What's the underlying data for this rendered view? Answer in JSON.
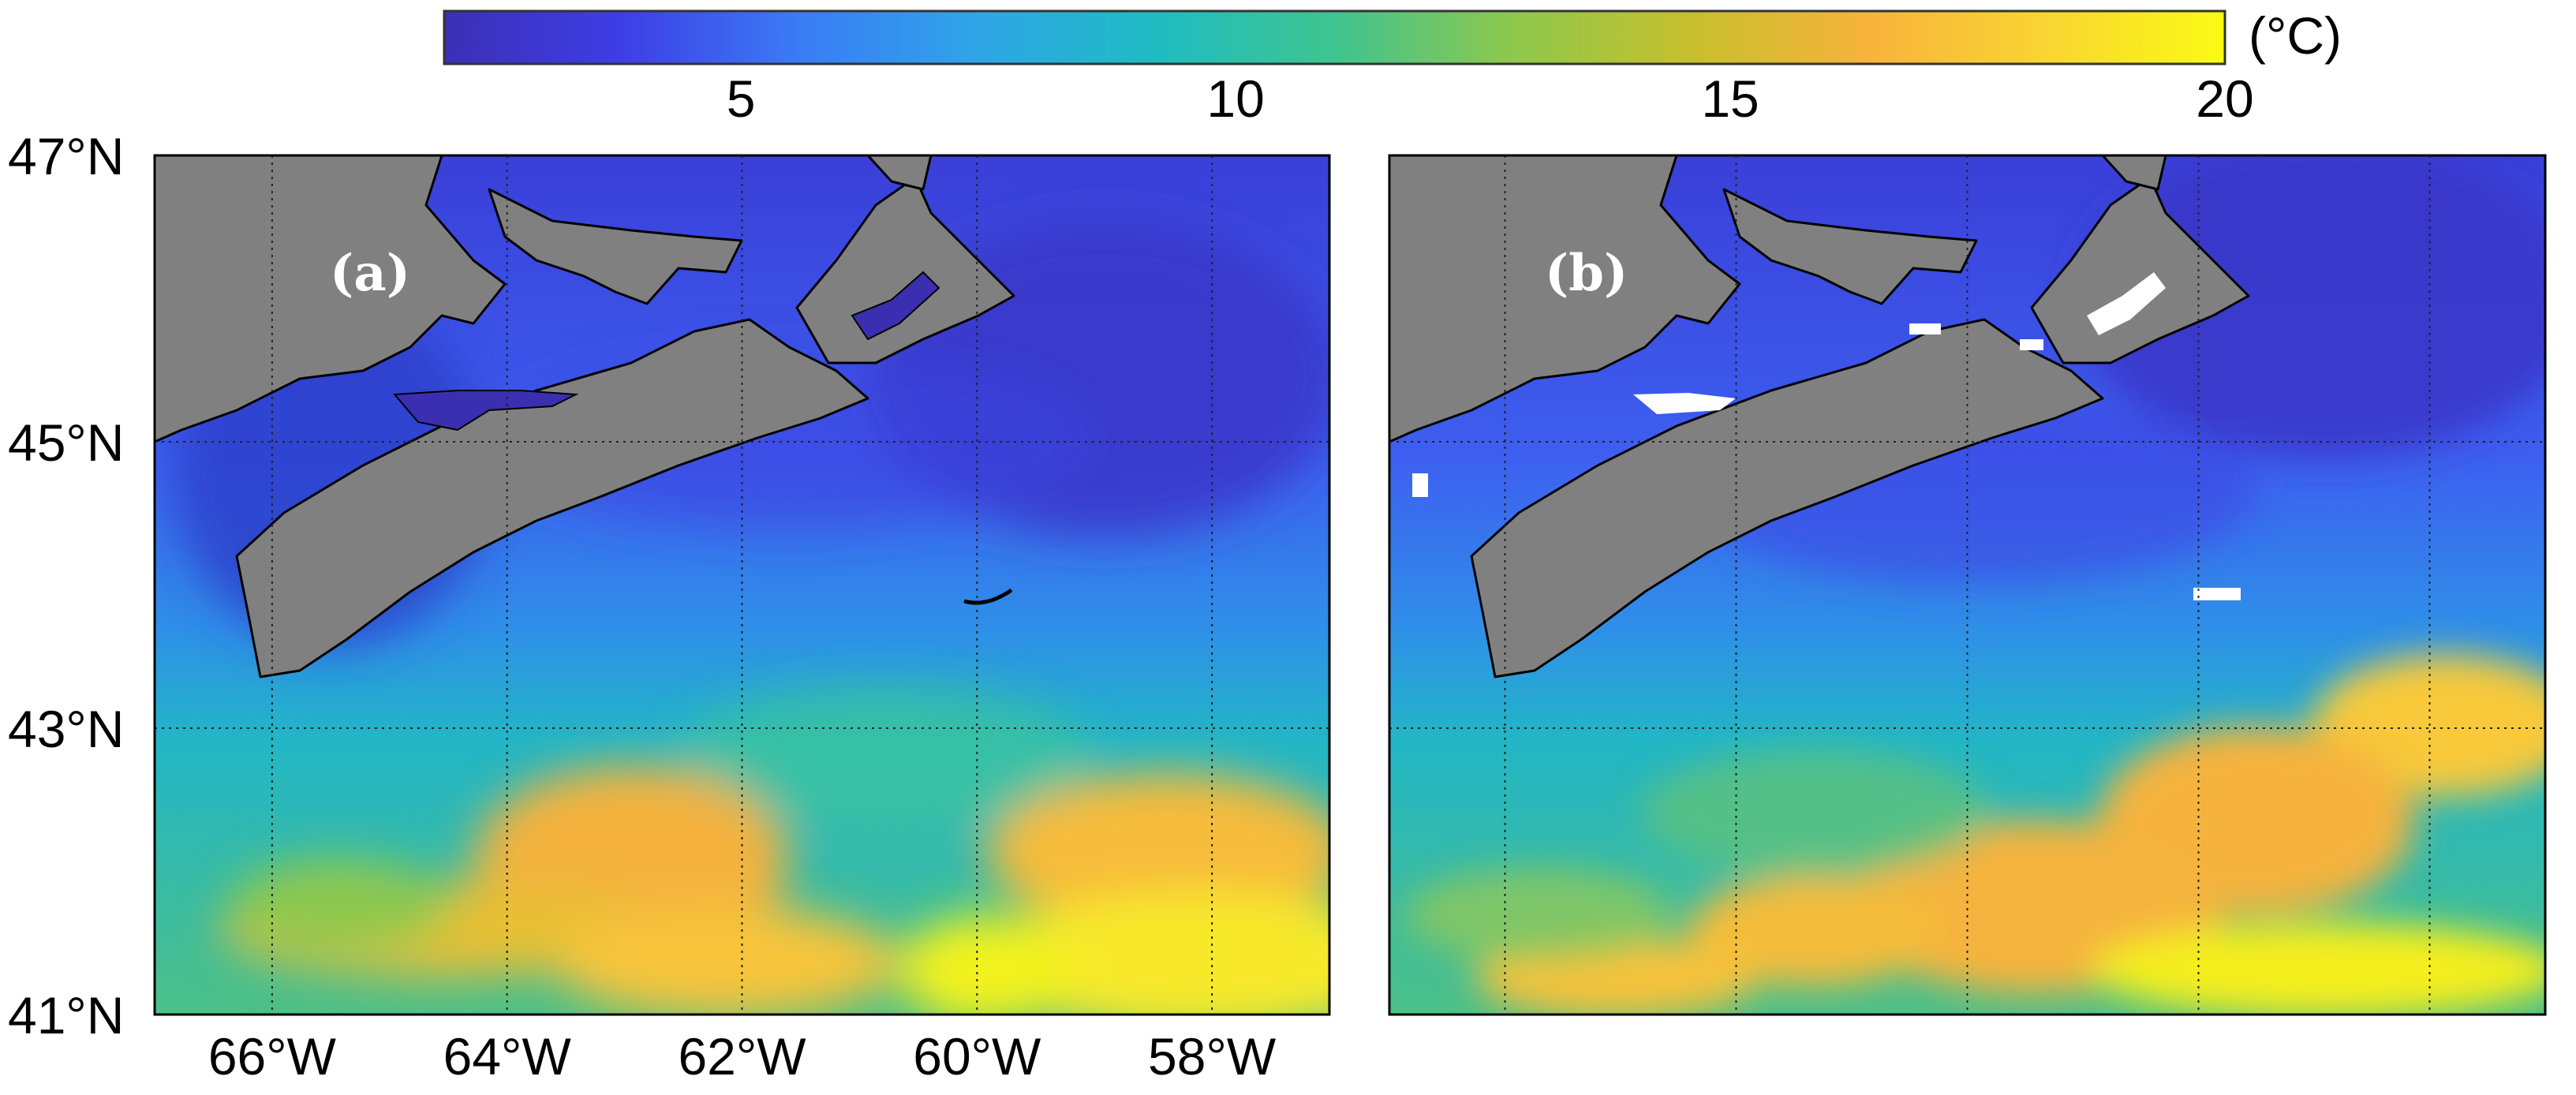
{
  "colorbar": {
    "unit": "(°C)",
    "min": 2,
    "max": 20,
    "ticks": [
      "5",
      "10",
      "15",
      "20"
    ],
    "tick_values": [
      5,
      10,
      15,
      20
    ],
    "colormap": [
      "#3b2fb5",
      "#3e3ee6",
      "#3b7cf5",
      "#2fa5e8",
      "#1fbcc2",
      "#3fc48f",
      "#8ec84d",
      "#c7bf2e",
      "#f8b33c",
      "#f9d532",
      "#f9fb14"
    ]
  },
  "map": {
    "lat_labels": [
      "47°N",
      "45°N",
      "43°N",
      "41°N"
    ],
    "lat_values": [
      47,
      45,
      43,
      41
    ],
    "lon_labels": [
      "66°W",
      "64°W",
      "62°W",
      "60°W",
      "58°W"
    ],
    "lon_values": [
      -66,
      -64,
      -62,
      -60,
      -58
    ],
    "lon_range": [
      -67,
      -57
    ],
    "lat_range": [
      41,
      47
    ],
    "land_color": "#808080",
    "coast_color": "#000000",
    "grid": "dotted"
  },
  "panels": [
    {
      "label": "(a)"
    },
    {
      "label": "(b)"
    }
  ]
}
